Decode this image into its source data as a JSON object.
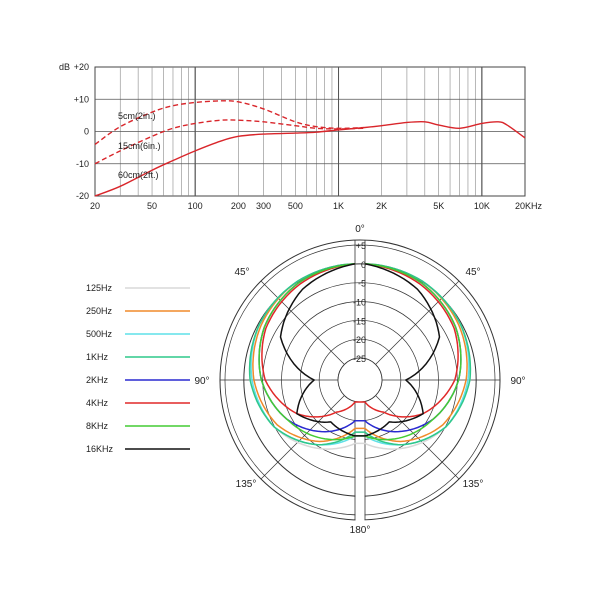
{
  "chart_data": [
    {
      "type": "line",
      "title": "",
      "ylabel": "dB",
      "xlabel": "",
      "x_scale": "log",
      "xlim": [
        20,
        20000
      ],
      "ylim": [
        -20,
        20
      ],
      "grid": true,
      "x_ticks": [
        {
          "value": 20,
          "label": "20"
        },
        {
          "value": 50,
          "label": "50"
        },
        {
          "value": 100,
          "label": "100"
        },
        {
          "value": 200,
          "label": "200"
        },
        {
          "value": 300,
          "label": "300"
        },
        {
          "value": 500,
          "label": "500"
        },
        {
          "value": 1000,
          "label": "1K"
        },
        {
          "value": 2000,
          "label": "2K"
        },
        {
          "value": 5000,
          "label": "5K"
        },
        {
          "value": 10000,
          "label": "10K"
        },
        {
          "value": 20000,
          "label": "20KHz"
        }
      ],
      "y_ticks": [
        {
          "value": 20,
          "label": "+20"
        },
        {
          "value": 10,
          "label": "+10"
        },
        {
          "value": 0,
          "label": "0"
        },
        {
          "value": -10,
          "label": "-10"
        },
        {
          "value": -20,
          "label": "-20"
        }
      ],
      "color": "#d9262b",
      "series": [
        {
          "name": "5cm(2in.)",
          "dash": true,
          "x": [
            20,
            30,
            50,
            70,
            100,
            150,
            200,
            300,
            500,
            700,
            1000,
            1500
          ],
          "y": [
            -4,
            1.5,
            6,
            8,
            9,
            9.5,
            9.2,
            7,
            3,
            1.5,
            1,
            1.2
          ]
        },
        {
          "name": "15cm(6in.)",
          "dash": true,
          "x": [
            20,
            30,
            50,
            70,
            100,
            150,
            200,
            300,
            500,
            700,
            1000,
            1500
          ],
          "y": [
            -10,
            -6,
            -1.5,
            1,
            2.5,
            3.5,
            3.5,
            3,
            1.8,
            1,
            0.8,
            1
          ]
        },
        {
          "name": "60cm(2ft.)",
          "dash": false,
          "x": [
            20,
            30,
            50,
            70,
            100,
            150,
            200,
            300,
            500,
            700,
            1000,
            1500,
            2000,
            3000,
            4000,
            5000,
            7000,
            10000,
            13000,
            15000,
            20000
          ],
          "y": [
            -21,
            -17,
            -12,
            -9,
            -6,
            -3,
            -1.5,
            -0.8,
            -0.5,
            -0.2,
            0.5,
            1.2,
            1.8,
            2.8,
            3,
            2,
            1,
            2.5,
            3,
            2,
            -2
          ]
        }
      ]
    },
    {
      "type": "polar",
      "title": "",
      "rlim": [
        -25,
        5
      ],
      "radial_ticks": [
        {
          "value": 5,
          "label": "+5"
        },
        {
          "value": 0,
          "label": "0"
        },
        {
          "value": -5,
          "label": "-5"
        },
        {
          "value": -10,
          "label": "-10"
        },
        {
          "value": -15,
          "label": "-15"
        },
        {
          "value": -20,
          "label": "-20"
        },
        {
          "value": -25,
          "label": "-25"
        }
      ],
      "angle_labels": [
        {
          "deg": 0,
          "label": "0°"
        },
        {
          "deg": 45,
          "label": "45°"
        },
        {
          "deg": 90,
          "label": "90°"
        },
        {
          "deg": 135,
          "label": "135°"
        },
        {
          "deg": 180,
          "label": "180°"
        },
        {
          "deg": 225,
          "label": "135°"
        },
        {
          "deg": 270,
          "label": "90°"
        },
        {
          "deg": 315,
          "label": "45°"
        }
      ],
      "series": [
        {
          "name": "125Hz",
          "color": "#d8d8d8",
          "angles": [
            0,
            30,
            60,
            90,
            120,
            150,
            180
          ],
          "levels": [
            0,
            -0.5,
            -1.5,
            -3,
            -6,
            -10,
            -14
          ]
        },
        {
          "name": "250Hz",
          "color": "#f08a2a",
          "angles": [
            0,
            30,
            60,
            90,
            120,
            150,
            180
          ],
          "levels": [
            0,
            -0.5,
            -2,
            -4,
            -7,
            -12,
            -18
          ]
        },
        {
          "name": "500Hz",
          "color": "#5fe0e8",
          "angles": [
            0,
            30,
            60,
            90,
            120,
            150,
            180
          ],
          "levels": [
            0,
            -0.5,
            -1.5,
            -3.5,
            -6,
            -11,
            -16
          ]
        },
        {
          "name": "1KHz",
          "color": "#2fc88a",
          "angles": [
            0,
            30,
            60,
            90,
            120,
            150,
            180
          ],
          "levels": [
            0,
            -0.5,
            -1.5,
            -3,
            -6,
            -11,
            -17
          ]
        },
        {
          "name": "2KHz",
          "color": "#2a2ad0",
          "angles": [
            0,
            30,
            60,
            90,
            120,
            150,
            180
          ],
          "levels": [
            0,
            -1,
            -3,
            -6,
            -10,
            -15,
            -20
          ]
        },
        {
          "name": "4KHz",
          "color": "#e02828",
          "angles": [
            0,
            30,
            60,
            90,
            120,
            150,
            180
          ],
          "levels": [
            0,
            -1.5,
            -3.5,
            -7,
            -13,
            -21,
            -25
          ]
        },
        {
          "name": "8KHz",
          "color": "#44cc33",
          "angles": [
            0,
            30,
            60,
            90,
            120,
            150,
            180
          ],
          "levels": [
            0,
            -1,
            -3,
            -6,
            -10,
            -13,
            -16
          ]
        },
        {
          "name": "16KHz",
          "color": "#111111",
          "angles": [
            0,
            30,
            60,
            90,
            120,
            150,
            180
          ],
          "levels": [
            0,
            -3,
            -8,
            -20,
            -13,
            -18,
            -16
          ]
        }
      ]
    }
  ]
}
